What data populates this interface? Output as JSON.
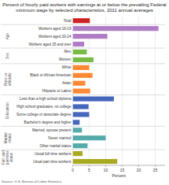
{
  "chart_data": {
    "type": "bar",
    "orientation": "horizontal",
    "title": "Percent of hourly paid workers with earnings at or below the prevailing Federal\nminimum wage by selected characteristics, 2011 annual averages",
    "source": "Source: U.S. Bureau of Labor Statistics",
    "xlabel": "Percent",
    "xlim": [
      0,
      28
    ],
    "xticks": [
      0,
      5,
      10,
      15,
      20,
      25
    ],
    "grid": true,
    "categories": [
      "Total",
      "Workers aged 16-19",
      "Workers aged 20-24",
      "Workers aged 25 and over",
      "Men",
      "Women",
      "White",
      "Black or African American",
      "Asian",
      "Hispanic or Latino",
      "Less than a high school diploma",
      "High school graduates, no college",
      "Some college or associate degree",
      "Bachelor's degree and higher",
      "Married, spouse present",
      "Never married",
      "Other marital status",
      "Usual full-time workers",
      "Usual part-time workers"
    ],
    "values": [
      5.2,
      26.0,
      10.5,
      3.5,
      4.3,
      6.3,
      5.0,
      6.0,
      3.8,
      5.3,
      12.5,
      4.8,
      5.0,
      2.1,
      2.8,
      10.0,
      4.5,
      3.0,
      13.5
    ],
    "colors": [
      "#cc2222",
      "#b07cc6",
      "#b07cc6",
      "#b07cc6",
      "#77bb44",
      "#77bb44",
      "#ff8833",
      "#ff8833",
      "#ff8833",
      "#ff8833",
      "#4466bb",
      "#4466bb",
      "#4466bb",
      "#4466bb",
      "#55aaaa",
      "#55aaaa",
      "#55aaaa",
      "#aaaa22",
      "#aaaa22"
    ],
    "groups": [
      null,
      "Age",
      "Age",
      "Age",
      "Sex",
      "Sex",
      "Race or\nethnicity",
      "Race or\nethnicity",
      "Race or\nethnicity",
      "Race or\nethnicity",
      "Education",
      "Education",
      "Education",
      "Education",
      "Marital\nstatus",
      "Marital\nstatus",
      "Marital\nstatus",
      "Full- and\npart-time\nstatus",
      "Full- and\npart-time\nstatus"
    ]
  }
}
